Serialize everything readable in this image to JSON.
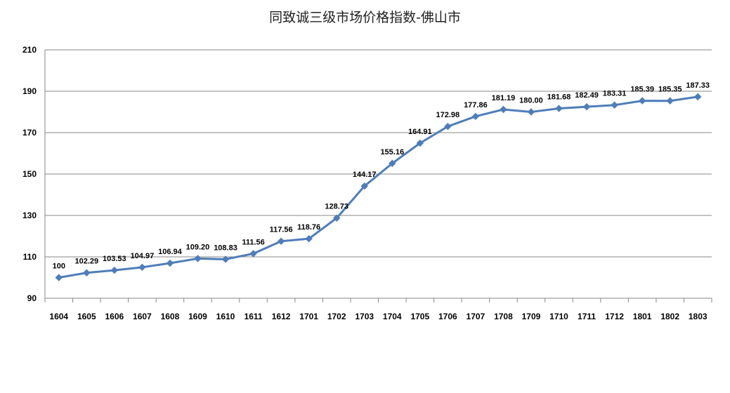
{
  "chart_data": {
    "type": "line",
    "title": "同致诚三级市场价格指数-佛山市",
    "xlabel": "",
    "ylabel": "",
    "ylim": [
      90,
      210
    ],
    "yticks": [
      90,
      110,
      130,
      150,
      170,
      190,
      210
    ],
    "grid": true,
    "legend": "none",
    "categories": [
      "1604",
      "1605",
      "1606",
      "1607",
      "1608",
      "1609",
      "1610",
      "1611",
      "1612",
      "1701",
      "1702",
      "1703",
      "1704",
      "1705",
      "1706",
      "1707",
      "1708",
      "1709",
      "1710",
      "1711",
      "1712",
      "1801",
      "1802",
      "1803"
    ],
    "series": [
      {
        "color": "#4F7DB8",
        "values": [
          100,
          102.29,
          103.53,
          104.97,
          106.94,
          109.2,
          108.83,
          111.56,
          117.56,
          118.76,
          128.73,
          144.17,
          155.16,
          164.91,
          172.98,
          177.86,
          181.19,
          180.0,
          181.68,
          182.49,
          183.31,
          185.39,
          185.35,
          187.33
        ],
        "labels": [
          "100",
          "102.29",
          "103.53",
          "104.97",
          "106.94",
          "109.20",
          "108.83",
          "111.56",
          "117.56",
          "118.76",
          "128.73",
          "144.17",
          "155.16",
          "164.91",
          "172.98",
          "177.86",
          "181.19",
          "180.00",
          "181.68",
          "182.49",
          "183.31",
          "185.39",
          "185.35",
          "187.33"
        ]
      }
    ]
  }
}
